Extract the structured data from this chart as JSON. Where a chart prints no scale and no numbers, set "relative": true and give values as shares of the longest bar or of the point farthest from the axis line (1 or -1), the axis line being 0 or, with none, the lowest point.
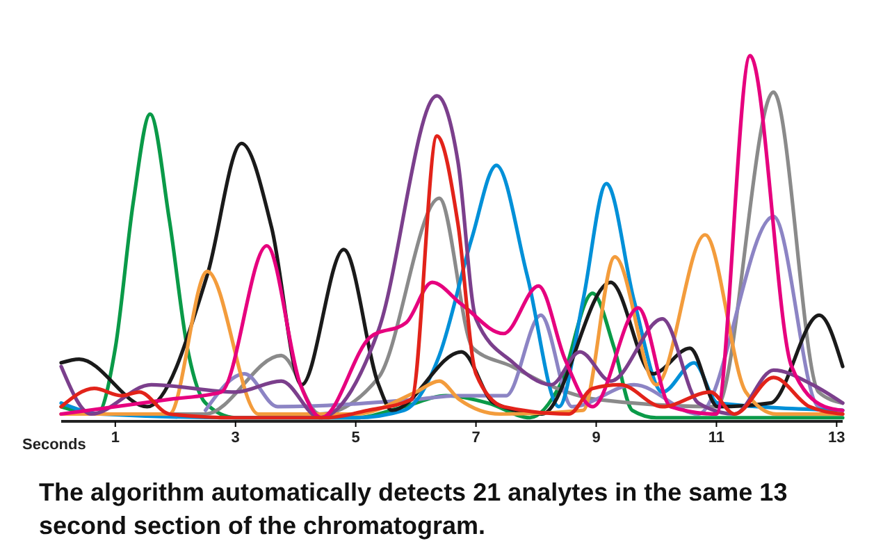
{
  "chart_data": {
    "type": "line",
    "relative": true,
    "xlabel": "Seconds",
    "xlim": [
      0.1,
      13.1
    ],
    "xticks": [
      1,
      3,
      5,
      7,
      9,
      11,
      13
    ],
    "annotations": [
      "The algorithm automatically detects 21 analytes in the same 13 second section of the chromatogram."
    ],
    "series": [
      {
        "color": "#0a9a48",
        "x": [
          0.1,
          0.7,
          1.0,
          1.3,
          1.58,
          1.9,
          2.2,
          2.5,
          3,
          4,
          5,
          5.8,
          6.5,
          7.2,
          7.9,
          8.4,
          8.94,
          9.3,
          9.6,
          10,
          11,
          13.1
        ],
        "values": [
          0.04,
          0.02,
          0.2,
          0.6,
          0.84,
          0.55,
          0.2,
          0.05,
          0.01,
          0.01,
          0.01,
          0.04,
          0.07,
          0.05,
          0.01,
          0.1,
          0.35,
          0.2,
          0.03,
          0.01,
          0.01,
          0.01
        ]
      },
      {
        "color": "#8a8a8a",
        "x": [
          0.1,
          2.5,
          3.76,
          4.4,
          5.38,
          6.39,
          6.95,
          7.6,
          8.2,
          9,
          11,
          11.95,
          12.7,
          13.1
        ],
        "values": [
          0.02,
          0.02,
          0.18,
          0.02,
          0.12,
          0.61,
          0.2,
          0.15,
          0.1,
          0.06,
          0.04,
          0.9,
          0.08,
          0.05
        ]
      },
      {
        "color": "#8c84c4",
        "x": [
          2.5,
          3.15,
          3.7,
          6,
          6.7,
          7.5,
          8.08,
          8.6,
          9.63,
          10.7,
          11.95,
          12.7,
          13.1
        ],
        "values": [
          0.03,
          0.13,
          0.04,
          0.06,
          0.07,
          0.07,
          0.29,
          0.04,
          0.1,
          0.02,
          0.56,
          0.04,
          0.03
        ]
      },
      {
        "color": "#0090d8",
        "x": [
          0.1,
          0.75,
          3,
          5,
          5.8,
          6.39,
          6.93,
          7.34,
          7.85,
          8.38,
          8.78,
          9.17,
          9.63,
          10.1,
          10.63,
          11.02,
          13.1
        ],
        "values": [
          0.05,
          0.02,
          0.01,
          0.01,
          0.03,
          0.18,
          0.5,
          0.7,
          0.4,
          0.04,
          0.33,
          0.65,
          0.33,
          0.08,
          0.16,
          0.05,
          0.03
        ]
      },
      {
        "color": "#1a1a1a",
        "x": [
          0.1,
          0.4,
          1.53,
          2.53,
          3.1,
          3.6,
          4.1,
          4.8,
          5.38,
          5.6,
          6.76,
          7.3,
          8.1,
          9.24,
          9.94,
          10.56,
          11.02,
          11.9,
          12.71,
          13.1
        ],
        "values": [
          0.16,
          0.17,
          0.04,
          0.4,
          0.76,
          0.53,
          0.1,
          0.47,
          0.1,
          0.03,
          0.19,
          0.05,
          0.02,
          0.38,
          0.13,
          0.2,
          0.04,
          0.05,
          0.29,
          0.15
        ]
      },
      {
        "color": "#f39c3c",
        "x": [
          0.1,
          1.9,
          2.53,
          3.38,
          5,
          6.0,
          6.39,
          6.72,
          7.4,
          8.78,
          9.31,
          10.0,
          10.81,
          11.49,
          12,
          13.1
        ],
        "values": [
          0.02,
          0.02,
          0.41,
          0.02,
          0.02,
          0.08,
          0.11,
          0.06,
          0.02,
          0.03,
          0.45,
          0.1,
          0.51,
          0.08,
          0.02,
          0.02
        ]
      },
      {
        "color": "#7b3f8c",
        "x": [
          0.1,
          0.6,
          1.6,
          3,
          3.76,
          4.4,
          5.38,
          6.35,
          6.7,
          7.0,
          7.62,
          8.25,
          8.73,
          9.24,
          10.1,
          10.7,
          11.3,
          11.95,
          12.6,
          13.1
        ],
        "values": [
          0.15,
          0.02,
          0.1,
          0.08,
          0.11,
          0.01,
          0.25,
          0.89,
          0.71,
          0.28,
          0.16,
          0.1,
          0.19,
          0.11,
          0.28,
          0.05,
          0.02,
          0.14,
          0.1,
          0.05
        ]
      },
      {
        "color": "#e6007e",
        "x": [
          0.1,
          1.9,
          2.76,
          3.52,
          4.08,
          4.43,
          5.24,
          5.84,
          6.27,
          6.76,
          7.46,
          8.04,
          8.48,
          8.94,
          9.7,
          10.24,
          11.0,
          11.56,
          12.25,
          12.8,
          13.1
        ],
        "values": [
          0.02,
          0.06,
          0.08,
          0.48,
          0.1,
          0.01,
          0.23,
          0.27,
          0.38,
          0.32,
          0.24,
          0.37,
          0.17,
          0.04,
          0.31,
          0.04,
          0.02,
          1,
          0.15,
          0.04,
          0.03
        ]
      },
      {
        "color": "#e2231a",
        "x": [
          0.1,
          0.65,
          1.1,
          1.4,
          1.9,
          3,
          4.5,
          5.2,
          5.93,
          6.35,
          6.7,
          7.0,
          7.46,
          8.55,
          8.94,
          9.4,
          10.1,
          10.9,
          11.3,
          11.95,
          12.55,
          13.1
        ],
        "values": [
          0.04,
          0.09,
          0.07,
          0.08,
          0.02,
          0.01,
          0.01,
          0.03,
          0.06,
          0.78,
          0.54,
          0.13,
          0.04,
          0.02,
          0.09,
          0.1,
          0.04,
          0.08,
          0.02,
          0.12,
          0.04,
          0.02
        ]
      }
    ]
  }
}
